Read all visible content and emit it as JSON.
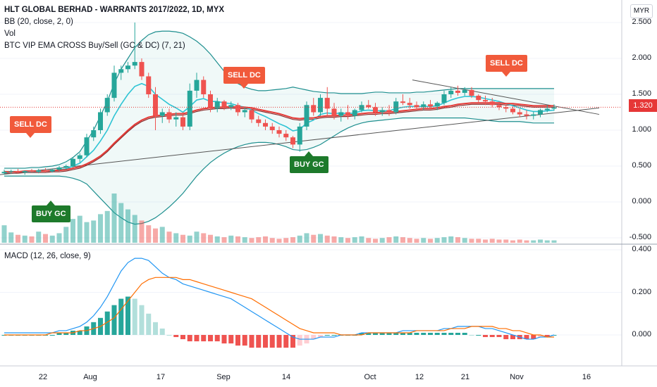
{
  "header": {
    "title": "HLT GLOBAL BERHAD - WARRANTS 2017/2022, 1D, MYX",
    "indicators": [
      "BB (20, close, 2, 0)",
      "Vol",
      "BTC VIP EMA CROSS Buy/Sell (GC & DC) (7, 21)"
    ],
    "currency": "MYR"
  },
  "macd_legend": "MACD (12, 26, close, 9)",
  "current_price": "1.320",
  "signals": [
    {
      "label": "SELL DC",
      "type": "sell"
    },
    {
      "label": "BUY GC",
      "type": "buy"
    },
    {
      "label": "SELL DC",
      "type": "sell"
    },
    {
      "label": "BUY GC",
      "type": "buy"
    },
    {
      "label": "SELL DC",
      "type": "sell"
    }
  ],
  "colors": {
    "up": "#26a69a",
    "down": "#ef5350",
    "bb": "#1e8f8f",
    "ema_fast": "#e53935",
    "ema_slow": "#8b2c2c",
    "macd": "#2196f3",
    "signal": "#ff6d00",
    "trend": "#555555"
  },
  "chart_data": [
    {
      "type": "candlestick",
      "title": "HLT GLOBAL BERHAD - WARRANTS 2017/2022, 1D, MYX",
      "x_ticks": [
        "22",
        "Aug",
        "17",
        "Sep",
        "14",
        "Oct",
        "12",
        "21",
        "Nov",
        "16"
      ],
      "y_ticks": [
        "2.500",
        "2.000",
        "1.500",
        "1.000",
        "0.500",
        "0.000",
        "-0.500"
      ],
      "ylim": [
        -0.55,
        2.55
      ],
      "ohlc": [
        [
          0.4,
          0.45,
          0.38,
          0.42
        ],
        [
          0.42,
          0.45,
          0.39,
          0.43
        ],
        [
          0.43,
          0.46,
          0.4,
          0.41
        ],
        [
          0.41,
          0.44,
          0.38,
          0.43
        ],
        [
          0.43,
          0.46,
          0.41,
          0.42
        ],
        [
          0.42,
          0.46,
          0.4,
          0.44
        ],
        [
          0.44,
          0.47,
          0.42,
          0.43
        ],
        [
          0.43,
          0.46,
          0.41,
          0.45
        ],
        [
          0.45,
          0.5,
          0.43,
          0.48
        ],
        [
          0.48,
          0.52,
          0.45,
          0.5
        ],
        [
          0.5,
          0.62,
          0.48,
          0.6
        ],
        [
          0.6,
          0.68,
          0.55,
          0.65
        ],
        [
          0.65,
          0.95,
          0.62,
          0.9
        ],
        [
          0.9,
          1.05,
          0.85,
          1.0
        ],
        [
          1.0,
          1.3,
          0.95,
          1.25
        ],
        [
          1.25,
          1.5,
          1.2,
          1.45
        ],
        [
          1.45,
          1.9,
          1.4,
          1.8
        ],
        [
          1.8,
          1.9,
          1.7,
          1.85
        ],
        [
          1.85,
          1.95,
          1.8,
          1.9
        ],
        [
          1.9,
          2.5,
          1.85,
          1.95
        ],
        [
          1.95,
          2.0,
          1.7,
          1.75
        ],
        [
          1.75,
          1.8,
          1.45,
          1.5
        ],
        [
          1.5,
          1.6,
          1.0,
          1.2
        ],
        [
          1.2,
          1.3,
          1.1,
          1.25
        ],
        [
          1.25,
          1.3,
          1.1,
          1.15
        ],
        [
          1.15,
          1.25,
          1.05,
          1.18
        ],
        [
          1.18,
          1.25,
          1.0,
          1.05
        ],
        [
          1.05,
          1.65,
          1.0,
          1.55
        ],
        [
          1.55,
          1.8,
          1.45,
          1.7
        ],
        [
          1.7,
          1.75,
          1.45,
          1.5
        ],
        [
          1.5,
          1.55,
          1.25,
          1.3
        ],
        [
          1.3,
          1.45,
          1.25,
          1.4
        ],
        [
          1.4,
          1.42,
          1.28,
          1.32
        ],
        [
          1.32,
          1.4,
          1.28,
          1.35
        ],
        [
          1.35,
          1.38,
          1.2,
          1.25
        ],
        [
          1.25,
          1.32,
          1.18,
          1.28
        ],
        [
          1.28,
          1.3,
          1.1,
          1.15
        ],
        [
          1.15,
          1.2,
          1.05,
          1.1
        ],
        [
          1.1,
          1.15,
          1.0,
          1.05
        ],
        [
          1.05,
          1.1,
          0.95,
          1.0
        ],
        [
          1.0,
          1.05,
          0.9,
          0.95
        ],
        [
          0.95,
          1.0,
          0.85,
          0.9
        ],
        [
          0.9,
          0.92,
          0.75,
          0.8
        ],
        [
          0.8,
          1.1,
          0.7,
          1.05
        ],
        [
          1.05,
          1.4,
          1.0,
          1.35
        ],
        [
          1.35,
          1.45,
          1.2,
          1.25
        ],
        [
          1.25,
          1.5,
          1.2,
          1.45
        ],
        [
          1.45,
          1.6,
          1.2,
          1.3
        ],
        [
          1.3,
          1.38,
          1.15,
          1.2
        ],
        [
          1.2,
          1.3,
          1.12,
          1.25
        ],
        [
          1.25,
          1.35,
          1.15,
          1.2
        ],
        [
          1.2,
          1.3,
          1.15,
          1.28
        ],
        [
          1.28,
          1.4,
          1.25,
          1.35
        ],
        [
          1.35,
          1.42,
          1.3,
          1.32
        ],
        [
          1.32,
          1.38,
          1.2,
          1.25
        ],
        [
          1.25,
          1.32,
          1.2,
          1.28
        ],
        [
          1.28,
          1.35,
          1.2,
          1.25
        ],
        [
          1.25,
          1.45,
          1.22,
          1.4
        ],
        [
          1.4,
          1.5,
          1.35,
          1.38
        ],
        [
          1.38,
          1.45,
          1.3,
          1.35
        ],
        [
          1.35,
          1.4,
          1.28,
          1.32
        ],
        [
          1.32,
          1.4,
          1.28,
          1.36
        ],
        [
          1.36,
          1.42,
          1.3,
          1.33
        ],
        [
          1.33,
          1.4,
          1.28,
          1.38
        ],
        [
          1.38,
          1.55,
          1.35,
          1.5
        ],
        [
          1.5,
          1.6,
          1.45,
          1.55
        ],
        [
          1.55,
          1.62,
          1.48,
          1.52
        ],
        [
          1.52,
          1.6,
          1.48,
          1.56
        ],
        [
          1.56,
          1.6,
          1.45,
          1.48
        ],
        [
          1.48,
          1.5,
          1.38,
          1.42
        ],
        [
          1.42,
          1.48,
          1.35,
          1.4
        ],
        [
          1.4,
          1.45,
          1.32,
          1.35
        ],
        [
          1.35,
          1.4,
          1.28,
          1.32
        ],
        [
          1.32,
          1.35,
          1.25,
          1.3
        ],
        [
          1.3,
          1.33,
          1.22,
          1.25
        ],
        [
          1.25,
          1.3,
          1.18,
          1.22
        ],
        [
          1.22,
          1.28,
          1.15,
          1.2
        ],
        [
          1.2,
          1.26,
          1.15,
          1.22
        ],
        [
          1.22,
          1.3,
          1.18,
          1.28
        ],
        [
          1.28,
          1.35,
          1.25,
          1.3
        ],
        [
          1.3,
          1.36,
          1.27,
          1.32
        ]
      ],
      "volume": [
        22,
        13,
        10,
        9,
        8,
        14,
        11,
        9,
        12,
        20,
        30,
        34,
        26,
        28,
        36,
        40,
        62,
        50,
        42,
        35,
        28,
        22,
        18,
        20,
        14,
        12,
        10,
        9,
        14,
        12,
        10,
        8,
        7,
        9,
        8,
        7,
        6,
        7,
        8,
        6,
        5,
        6,
        7,
        9,
        12,
        10,
        11,
        9,
        8,
        7,
        6,
        7,
        8,
        6,
        5,
        6,
        7,
        8,
        7,
        6,
        5,
        6,
        5,
        6,
        7,
        8,
        7,
        6,
        5,
        5,
        4,
        5,
        4,
        4,
        3,
        4,
        3,
        3,
        4,
        3,
        3
      ],
      "bb_upper": [
        0.47,
        0.47,
        0.47,
        0.47,
        0.48,
        0.48,
        0.49,
        0.5,
        0.52,
        0.56,
        0.62,
        0.7,
        0.85,
        1.0,
        1.2,
        1.4,
        1.65,
        1.85,
        2.0,
        2.15,
        2.25,
        2.33,
        2.37,
        2.38,
        2.38,
        2.37,
        2.35,
        2.3,
        2.24,
        2.16,
        2.06,
        1.94,
        1.82,
        1.72,
        1.65,
        1.6,
        1.57,
        1.55,
        1.55,
        1.56,
        1.57,
        1.58,
        1.6,
        1.58,
        1.56,
        1.54,
        1.53,
        1.52,
        1.52,
        1.51,
        1.51,
        1.51,
        1.51,
        1.52,
        1.53,
        1.53,
        1.52,
        1.52,
        1.52,
        1.52,
        1.53,
        1.53,
        1.54,
        1.55,
        1.56,
        1.57,
        1.58,
        1.58,
        1.58,
        1.58,
        1.58,
        1.58,
        1.58,
        1.58,
        1.58,
        1.58,
        1.58,
        1.58,
        1.58,
        1.58,
        1.58
      ],
      "bb_lower": [
        0.36,
        0.36,
        0.36,
        0.36,
        0.36,
        0.36,
        0.36,
        0.36,
        0.36,
        0.35,
        0.33,
        0.3,
        0.25,
        0.15,
        0.05,
        -0.05,
        -0.15,
        -0.22,
        -0.28,
        -0.31,
        -0.3,
        -0.27,
        -0.22,
        -0.15,
        -0.07,
        0.02,
        0.12,
        0.24,
        0.36,
        0.46,
        0.55,
        0.62,
        0.68,
        0.73,
        0.77,
        0.8,
        0.82,
        0.83,
        0.83,
        0.82,
        0.8,
        0.77,
        0.73,
        0.72,
        0.73,
        0.76,
        0.8,
        0.86,
        0.92,
        0.98,
        1.03,
        1.07,
        1.1,
        1.12,
        1.13,
        1.14,
        1.15,
        1.16,
        1.17,
        1.17,
        1.17,
        1.17,
        1.17,
        1.17,
        1.17,
        1.17,
        1.17,
        1.17,
        1.16,
        1.15,
        1.14,
        1.13,
        1.12,
        1.12,
        1.12,
        1.12,
        1.11,
        1.1,
        1.1,
        1.1,
        1.1
      ],
      "ema_fast": [
        0.41,
        0.42,
        0.42,
        0.42,
        0.42,
        0.43,
        0.43,
        0.43,
        0.45,
        0.46,
        0.5,
        0.54,
        0.63,
        0.72,
        0.85,
        1.0,
        1.2,
        1.36,
        1.5,
        1.61,
        1.65,
        1.61,
        1.5,
        1.43,
        1.36,
        1.31,
        1.25,
        1.33,
        1.42,
        1.44,
        1.4,
        1.4,
        1.38,
        1.37,
        1.34,
        1.32,
        1.28,
        1.23,
        1.19,
        1.14,
        1.09,
        1.05,
        0.99,
        1.01,
        1.1,
        1.14,
        1.22,
        1.24,
        1.23,
        1.24,
        1.23,
        1.24,
        1.27,
        1.28,
        1.27,
        1.27,
        1.27,
        1.3,
        1.32,
        1.33,
        1.33,
        1.33,
        1.33,
        1.34,
        1.38,
        1.42,
        1.45,
        1.47,
        1.47,
        1.46,
        1.44,
        1.42,
        1.4,
        1.37,
        1.34,
        1.31,
        1.28,
        1.26,
        1.26,
        1.27,
        1.28
      ],
      "ema_slow": [
        0.4,
        0.4,
        0.4,
        0.41,
        0.41,
        0.41,
        0.41,
        0.42,
        0.42,
        0.43,
        0.45,
        0.47,
        0.51,
        0.56,
        0.62,
        0.7,
        0.8,
        0.89,
        0.98,
        1.06,
        1.12,
        1.16,
        1.18,
        1.19,
        1.2,
        1.21,
        1.21,
        1.23,
        1.26,
        1.28,
        1.29,
        1.3,
        1.3,
        1.31,
        1.3,
        1.3,
        1.29,
        1.27,
        1.25,
        1.23,
        1.21,
        1.18,
        1.15,
        1.14,
        1.15,
        1.15,
        1.17,
        1.18,
        1.18,
        1.19,
        1.19,
        1.2,
        1.21,
        1.22,
        1.22,
        1.23,
        1.23,
        1.24,
        1.25,
        1.26,
        1.27,
        1.28,
        1.28,
        1.29,
        1.31,
        1.32,
        1.34,
        1.35,
        1.36,
        1.36,
        1.36,
        1.36,
        1.36,
        1.35,
        1.35,
        1.34,
        1.33,
        1.32,
        1.32,
        1.32,
        1.32
      ]
    },
    {
      "type": "line",
      "title": "MACD (12, 26, close, 9)",
      "y_ticks": [
        "0.400",
        "0.200",
        "0.000"
      ],
      "ylim": [
        -0.09,
        0.41
      ],
      "macd": [
        0.01,
        0.01,
        0.01,
        0.01,
        0.01,
        0.01,
        0.01,
        0.01,
        0.02,
        0.02,
        0.03,
        0.04,
        0.06,
        0.09,
        0.13,
        0.18,
        0.24,
        0.3,
        0.34,
        0.36,
        0.36,
        0.35,
        0.32,
        0.29,
        0.27,
        0.26,
        0.24,
        0.23,
        0.22,
        0.21,
        0.2,
        0.19,
        0.18,
        0.17,
        0.15,
        0.13,
        0.11,
        0.09,
        0.07,
        0.05,
        0.03,
        0.01,
        -0.01,
        -0.02,
        -0.02,
        -0.02,
        -0.01,
        -0.01,
        -0.01,
        0.0,
        0.0,
        0.0,
        0.01,
        0.01,
        0.01,
        0.01,
        0.01,
        0.01,
        0.02,
        0.02,
        0.02,
        0.02,
        0.02,
        0.02,
        0.03,
        0.03,
        0.04,
        0.04,
        0.04,
        0.04,
        0.03,
        0.03,
        0.02,
        0.01,
        0.0,
        -0.01,
        -0.02,
        -0.02,
        -0.01,
        -0.01,
        0.0
      ],
      "signal": [
        0.0,
        0.0,
        0.0,
        0.0,
        0.0,
        0.0,
        0.0,
        0.01,
        0.01,
        0.01,
        0.01,
        0.02,
        0.02,
        0.03,
        0.04,
        0.06,
        0.08,
        0.12,
        0.16,
        0.2,
        0.24,
        0.26,
        0.27,
        0.27,
        0.27,
        0.27,
        0.26,
        0.26,
        0.25,
        0.24,
        0.23,
        0.22,
        0.21,
        0.2,
        0.19,
        0.18,
        0.17,
        0.15,
        0.13,
        0.11,
        0.09,
        0.07,
        0.05,
        0.03,
        0.02,
        0.01,
        0.01,
        0.01,
        0.01,
        0.0,
        0.0,
        0.0,
        0.0,
        0.01,
        0.01,
        0.01,
        0.01,
        0.01,
        0.01,
        0.01,
        0.02,
        0.02,
        0.02,
        0.02,
        0.02,
        0.03,
        0.03,
        0.03,
        0.04,
        0.04,
        0.04,
        0.04,
        0.03,
        0.03,
        0.02,
        0.02,
        0.01,
        0.0,
        0.0,
        -0.01,
        -0.01
      ],
      "histogram": [
        0.0,
        0.0,
        0.0,
        0.0,
        0.0,
        0.0,
        0.0,
        0.0,
        0.01,
        0.01,
        0.02,
        0.02,
        0.04,
        0.06,
        0.08,
        0.11,
        0.14,
        0.17,
        0.18,
        0.17,
        0.14,
        0.1,
        0.06,
        0.03,
        0.0,
        -0.01,
        -0.02,
        -0.03,
        -0.03,
        -0.03,
        -0.03,
        -0.03,
        -0.04,
        -0.04,
        -0.05,
        -0.05,
        -0.06,
        -0.06,
        -0.06,
        -0.06,
        -0.06,
        -0.06,
        -0.06,
        -0.05,
        -0.04,
        -0.02,
        -0.01,
        0.0,
        0.0,
        0.0,
        0.0,
        0.0,
        0.01,
        0.01,
        0.01,
        0.01,
        0.01,
        0.01,
        0.01,
        0.01,
        0.01,
        0.01,
        0.01,
        0.01,
        0.01,
        0.01,
        0.01,
        0.01,
        0.0,
        0.0,
        -0.01,
        -0.01,
        -0.01,
        -0.02,
        -0.02,
        -0.02,
        -0.02,
        -0.02,
        -0.01,
        -0.01,
        0.0
      ]
    }
  ]
}
